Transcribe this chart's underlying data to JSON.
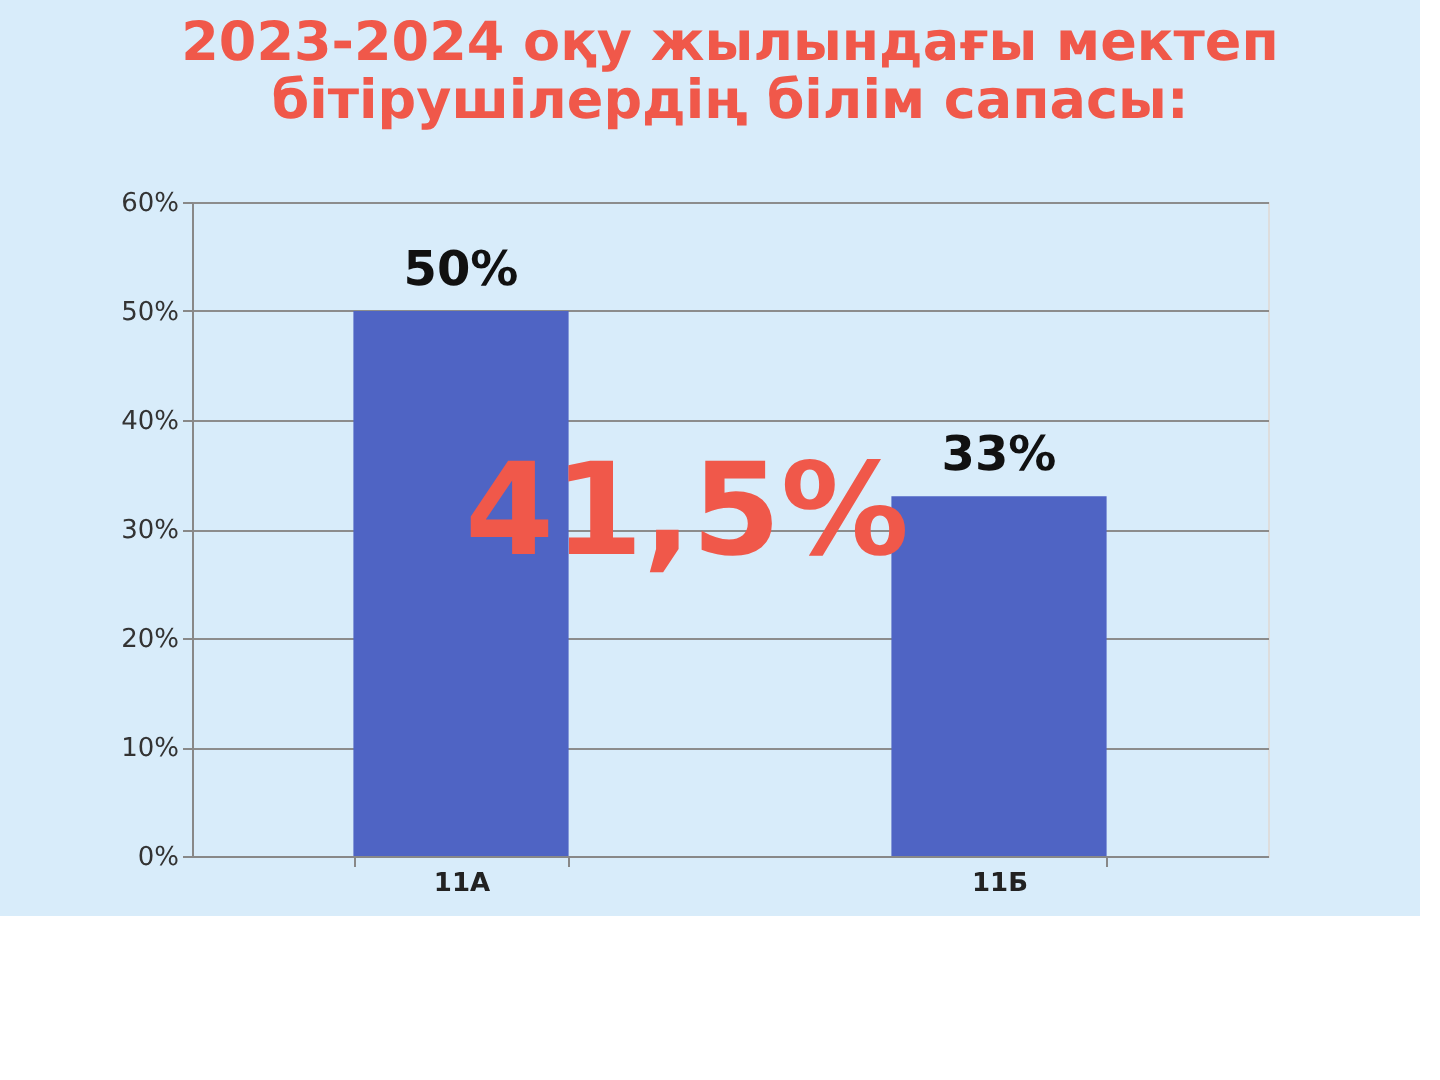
{
  "chart_data": {
    "type": "bar",
    "title": "2023-2024 оқу жылындағы мектеп\nбітірушілердің білім сапасы:",
    "categories": [
      "11А",
      "11Б"
    ],
    "values": [
      50,
      33
    ],
    "color": "#4f64c4",
    "value_labels": [
      "50%",
      "33%"
    ],
    "ylim": [
      0,
      60
    ],
    "yticks": [
      {
        "value": 0,
        "label": "0%"
      },
      {
        "value": 10,
        "label": "10%"
      },
      {
        "value": 20,
        "label": "20%"
      },
      {
        "value": 30,
        "label": "30%"
      },
      {
        "value": 40,
        "label": "40%"
      },
      {
        "value": 50,
        "label": "50%"
      },
      {
        "value": 60,
        "label": "60%"
      }
    ],
    "grid": "y",
    "annotations": [
      "41,5%"
    ]
  }
}
